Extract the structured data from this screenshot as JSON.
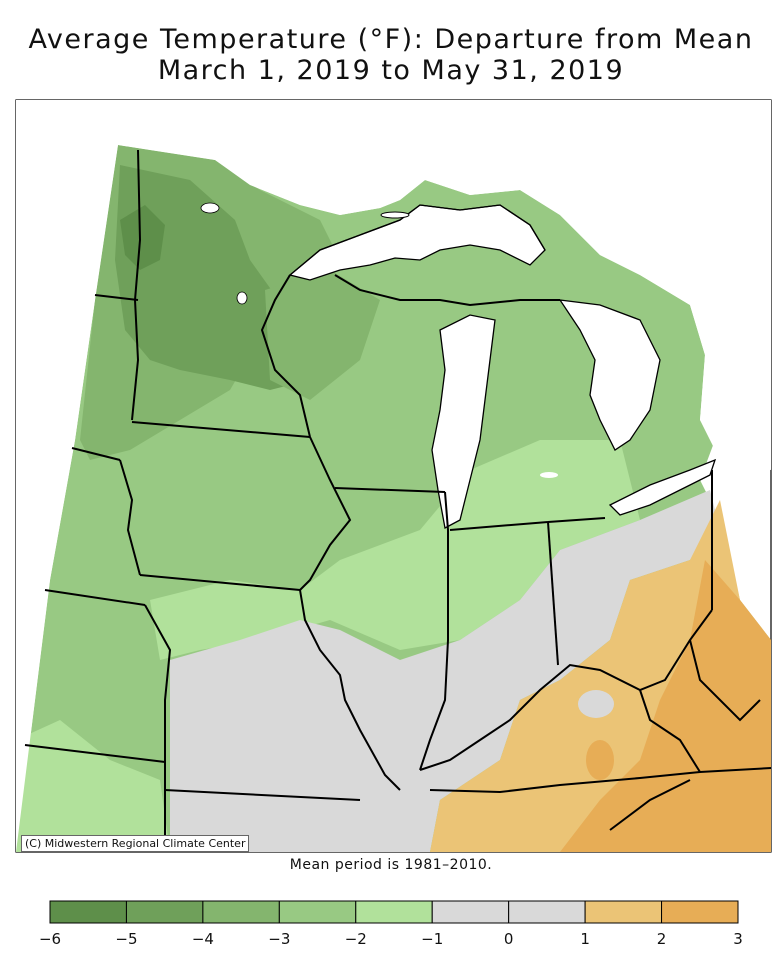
{
  "title_line1": "Average Temperature (°F): Departure from Mean",
  "title_line2": "March 1, 2019 to May 31, 2019",
  "credit": "(C) Midwestern Regional Climate Center",
  "mean_note": "Mean period is 1981–2010.",
  "legend": {
    "bins": [
      {
        "from": -6,
        "to": -5,
        "color": "#5e8f4a"
      },
      {
        "from": -5,
        "to": -4,
        "color": "#6fa05a"
      },
      {
        "from": -4,
        "to": -3,
        "color": "#84b56e"
      },
      {
        "from": -3,
        "to": -2,
        "color": "#98c983"
      },
      {
        "from": -2,
        "to": -1,
        "color": "#b1e19b"
      },
      {
        "from": -1,
        "to": 0,
        "color": "#d9d9d9"
      },
      {
        "from": 0,
        "to": 1,
        "color": "#d9d9d9"
      },
      {
        "from": 1,
        "to": 2,
        "color": "#ebc476"
      },
      {
        "from": 2,
        "to": 3,
        "color": "#e7ad56"
      }
    ],
    "tick_labels": [
      "−6",
      "−5",
      "−4",
      "−3",
      "−2",
      "−1",
      "0",
      "1",
      "2",
      "3"
    ]
  },
  "colors": {
    "water": "#ffffff",
    "near_normal": "#d9d9d9",
    "border": "#000000"
  }
}
